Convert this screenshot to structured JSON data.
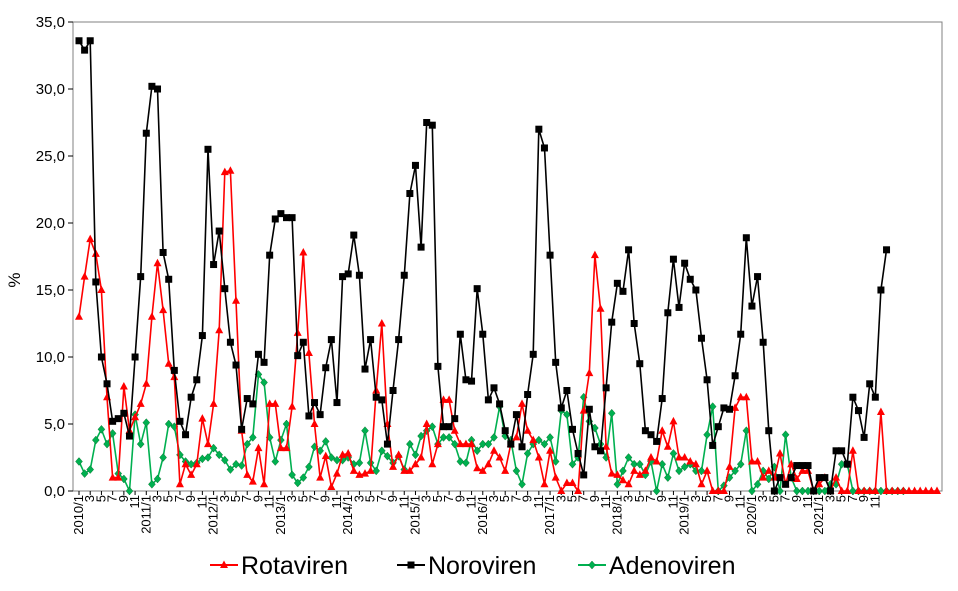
{
  "chart_data": {
    "type": "line",
    "title": "",
    "xlabel": "",
    "ylabel": "%",
    "ylim": [
      0,
      35
    ],
    "y_ticks": [
      "0,0",
      "5,0",
      "10,0",
      "15,0",
      "20,0",
      "25,0",
      "30,0",
      "35,0"
    ],
    "x_tick_labels": [
      "2010/1",
      "3",
      "5",
      "7",
      "9",
      "11",
      "2011/1",
      "3",
      "5",
      "7",
      "9",
      "11",
      "2012/1",
      "3",
      "5",
      "7",
      "9",
      "11",
      "2013/1",
      "3",
      "5",
      "7",
      "9",
      "11",
      "2014/1",
      "3",
      "5",
      "7",
      "9",
      "11",
      "2015/1",
      "3",
      "5",
      "7",
      "9",
      "11",
      "2016/1",
      "3",
      "5",
      "7",
      "9",
      "11",
      "2017/1",
      "3",
      "5",
      "7",
      "9",
      "11",
      "2018/1",
      "3",
      "5",
      "7",
      "9",
      "11",
      "2019/1",
      "3",
      "5",
      "7",
      "9",
      "11",
      "2020/1",
      "3",
      "5",
      "7",
      "9",
      "11",
      "2021/1",
      "3",
      "5",
      "7",
      "9",
      "11"
    ],
    "legend_position": "bottom",
    "grid": false,
    "series": [
      {
        "name": "Rotaviren",
        "color": "#ff0000",
        "marker": "triangle",
        "values": [
          13,
          16,
          18.8,
          17.7,
          15,
          7,
          1,
          1,
          7.8,
          4.5,
          5.5,
          6.5,
          8,
          13,
          17,
          13.5,
          9.5,
          8.5,
          0.5,
          2,
          1.2,
          2,
          5.4,
          3.5,
          6.5,
          12,
          23.8,
          23.9,
          14.2,
          4.5,
          1.2,
          0.7,
          3.2,
          0.5,
          6.5,
          6.5,
          3.2,
          3.2,
          6.3,
          11.8,
          17.8,
          10.3,
          5,
          1,
          2.6,
          0.3,
          1.3,
          2.7,
          2.8,
          1.5,
          1.2,
          1.3,
          1.5,
          7.5,
          12.5,
          5,
          1.8,
          2.7,
          1.5,
          1.5,
          2,
          2.5,
          5,
          2,
          3.5,
          6.8,
          6.8,
          4.5,
          3.5,
          3.5,
          3.5,
          1.7,
          1.5,
          2,
          3,
          2.5,
          1.5,
          3.5,
          4,
          6.5,
          4.5,
          3.8,
          2.5,
          0.5,
          3,
          1,
          0,
          0.6,
          0.6,
          0,
          6,
          8.8,
          17.6,
          13.6,
          3.3,
          1.3,
          1.2,
          0.8,
          0.5,
          1.5,
          1.2,
          1.5,
          2.5,
          2.2,
          4.5,
          3.3,
          5.2,
          2.5,
          2.5,
          2.2,
          2,
          0.5,
          1.5,
          0,
          0,
          0,
          1.8,
          6.2,
          7,
          7,
          2.2,
          2.2,
          1,
          1.5,
          1,
          2.8,
          0.5,
          2,
          0.9,
          1.5,
          1.5,
          0,
          0.5,
          1,
          0,
          1,
          0,
          0,
          3,
          0,
          0,
          0,
          0,
          5.9,
          0,
          0,
          0,
          0,
          0,
          0,
          0,
          0,
          0,
          0
        ]
      },
      {
        "name": "Noroviren",
        "color": "#000000",
        "marker": "square",
        "values": [
          33.6,
          32.9,
          33.6,
          15.6,
          10,
          8,
          5.2,
          5.4,
          5.8,
          4.1,
          10,
          16,
          26.7,
          30.2,
          30,
          17.8,
          15.8,
          9,
          5.2,
          4.2,
          7,
          8.3,
          11.6,
          25.5,
          16.9,
          19.4,
          15.1,
          11.1,
          9.4,
          4.6,
          6.9,
          6.5,
          10.2,
          9.6,
          17.6,
          20.3,
          20.7,
          20.4,
          20.4,
          10.1,
          11.1,
          5.6,
          6.6,
          5.7,
          9.2,
          11.3,
          6.6,
          16,
          16.2,
          19.1,
          16.1,
          9.1,
          11.3,
          7,
          6.8,
          3.5,
          7.5,
          11.3,
          16.1,
          22.2,
          24.3,
          18.2,
          27.5,
          27.3,
          9.3,
          4.8,
          4.8,
          5.4,
          11.7,
          8.3,
          8.2,
          15.1,
          11.7,
          6.8,
          7.7,
          6.5,
          4.5,
          3.5,
          5.7,
          3.3,
          7.2,
          10.2,
          27,
          25.6,
          17.6,
          9.6,
          6.2,
          7.5,
          4.6,
          2.8,
          1.2,
          6.1,
          3.3,
          3,
          7.7,
          12.6,
          15.5,
          14.9,
          18,
          12.5,
          9.5,
          4.5,
          4.2,
          3.7,
          6.9,
          13.3,
          17.3,
          13.7,
          17,
          15.8,
          15,
          11.4,
          8.3,
          3.4,
          4.8,
          6.2,
          6.1,
          8.6,
          11.7,
          18.9,
          13.8,
          16,
          11.1,
          4.5,
          0,
          1,
          0.5,
          1,
          1.9,
          1.9,
          1.9,
          0,
          1,
          1,
          0,
          3,
          3,
          2,
          7,
          6,
          4,
          8,
          7,
          15,
          18
        ]
      },
      {
        "name": "Adenoviren",
        "color": "#00b050",
        "marker": "diamond",
        "values": [
          2.2,
          1.3,
          1.6,
          3.8,
          4.6,
          3.5,
          4.3,
          1.3,
          0.9,
          0,
          5.7,
          3.5,
          5.1,
          0.5,
          0.9,
          2.5,
          5,
          4.8,
          2.7,
          2.2,
          2,
          2.1,
          2.4,
          2.5,
          3.2,
          2.7,
          2.3,
          1.6,
          2,
          1.9,
          3.5,
          4,
          8.7,
          8.1,
          4,
          2.2,
          3.8,
          5,
          1.2,
          0.6,
          1,
          1.8,
          3.3,
          3,
          3.7,
          2.5,
          2.3,
          2.3,
          2.5,
          2,
          2.1,
          4.5,
          2.1,
          1.5,
          3,
          2.6,
          2.1,
          2.6,
          1.6,
          3.5,
          2.7,
          4.1,
          4.5,
          4.8,
          3.5,
          4,
          4,
          3.5,
          2.2,
          2.1,
          3.8,
          3,
          3.5,
          3.5,
          4,
          6.3,
          4.1,
          3.8,
          1.5,
          0.5,
          2.8,
          3.5,
          3.8,
          3.5,
          4,
          2.2,
          6,
          5.7,
          2,
          2.5,
          7,
          5.2,
          4.7,
          3.5,
          2.5,
          5.8,
          0.5,
          1.5,
          2.5,
          2,
          2,
          1.2,
          2.2,
          0,
          2,
          1,
          2.8,
          1.5,
          1.8,
          2,
          1.5,
          1.5,
          4.2,
          6.3,
          0,
          0.4,
          1,
          1.5,
          2,
          4.5,
          0,
          0.5,
          1.5,
          0.9,
          1.8,
          0,
          4.2,
          1,
          0,
          0,
          0,
          0,
          0,
          0,
          0.5,
          0.5,
          2,
          2,
          0,
          0,
          0,
          0,
          0,
          0,
          0,
          0,
          0,
          0
        ]
      }
    ]
  }
}
